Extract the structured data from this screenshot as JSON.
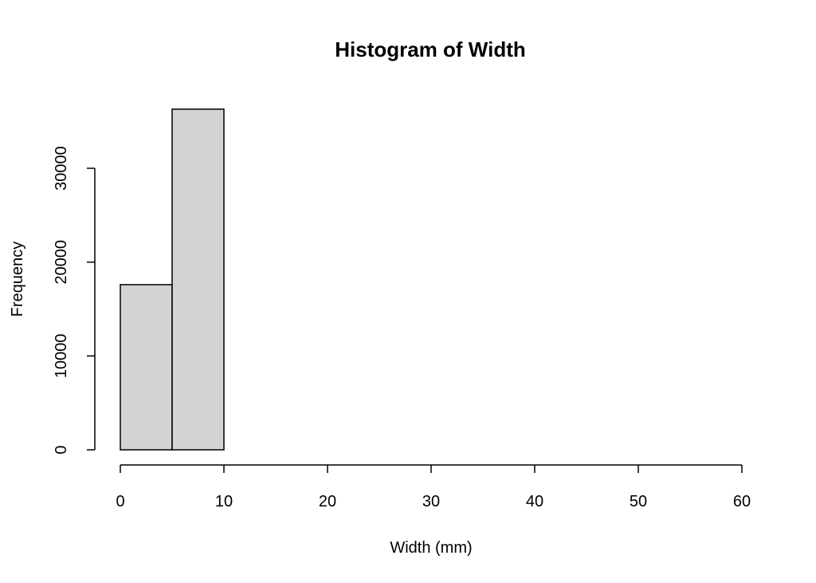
{
  "chart_data": {
    "type": "bar",
    "title": "Histogram of Width",
    "xlabel": "Width (mm)",
    "ylabel": "Frequency",
    "xlim": [
      0,
      60
    ],
    "ylim": [
      0,
      36500
    ],
    "x_ticks": [
      0,
      10,
      20,
      30,
      40,
      50,
      60
    ],
    "y_ticks": [
      0,
      10000,
      20000,
      30000
    ],
    "bin_width": 5,
    "bins": [
      {
        "start": 0,
        "end": 5,
        "count": 17600
      },
      {
        "start": 5,
        "end": 10,
        "count": 36300
      },
      {
        "start": 10,
        "end": 15,
        "count": 0
      },
      {
        "start": 15,
        "end": 20,
        "count": 0
      },
      {
        "start": 20,
        "end": 25,
        "count": 0
      },
      {
        "start": 25,
        "end": 30,
        "count": 0
      },
      {
        "start": 30,
        "end": 35,
        "count": 0
      },
      {
        "start": 35,
        "end": 40,
        "count": 0
      },
      {
        "start": 40,
        "end": 45,
        "count": 0
      },
      {
        "start": 45,
        "end": 50,
        "count": 0
      },
      {
        "start": 50,
        "end": 55,
        "count": 0
      },
      {
        "start": 55,
        "end": 60,
        "count": 0
      }
    ],
    "grid": false,
    "colors": {
      "bar_fill": "#d3d3d3",
      "bar_stroke": "#000000"
    }
  }
}
